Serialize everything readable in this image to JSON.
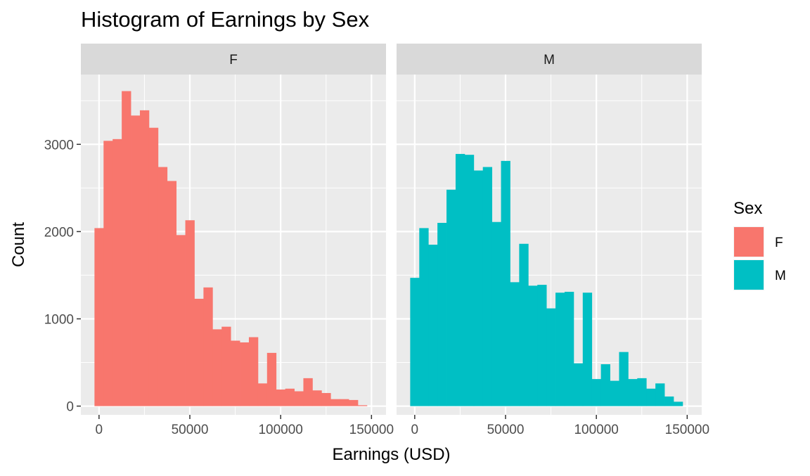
{
  "chart_data": {
    "type": "bar",
    "title": "Histogram of Earnings by Sex",
    "xlabel": "Earnings (USD)",
    "ylabel": "Count",
    "xlim": [
      -10000,
      158000
    ],
    "ylim": [
      -100,
      3800
    ],
    "x_ticks": [
      0,
      50000,
      100000,
      150000
    ],
    "x_tick_labels": [
      "0",
      "50000",
      "100000",
      "150000"
    ],
    "y_ticks": [
      0,
      1000,
      2000,
      3000
    ],
    "y_tick_labels": [
      "0",
      "1000",
      "2000",
      "3000"
    ],
    "bin_width": 5000,
    "grid": true,
    "legend": {
      "title": "Sex",
      "position": "right",
      "entries": [
        {
          "label": "F",
          "color": "#F8766D"
        },
        {
          "label": "M",
          "color": "#00BFC4"
        }
      ]
    },
    "panels": [
      {
        "strip_label": "F",
        "color": "#F8766D",
        "bin_centers": [
          0,
          5000,
          10000,
          15000,
          20000,
          25000,
          30000,
          35000,
          40000,
          45000,
          50000,
          55000,
          60000,
          65000,
          70000,
          75000,
          80000,
          85000,
          90000,
          95000,
          100000,
          105000,
          110000,
          115000,
          120000,
          125000,
          130000,
          135000,
          140000,
          145000,
          150000
        ],
        "values": [
          2040,
          3040,
          3060,
          3610,
          3330,
          3390,
          3190,
          2740,
          2580,
          1960,
          2130,
          1230,
          1360,
          880,
          910,
          750,
          730,
          790,
          260,
          610,
          190,
          200,
          170,
          320,
          180,
          150,
          80,
          80,
          70,
          10,
          0
        ]
      },
      {
        "strip_label": "M",
        "color": "#00BFC4",
        "bin_centers": [
          0,
          5000,
          10000,
          15000,
          20000,
          25000,
          30000,
          35000,
          40000,
          45000,
          50000,
          55000,
          60000,
          65000,
          70000,
          75000,
          80000,
          85000,
          90000,
          95000,
          100000,
          105000,
          110000,
          115000,
          120000,
          125000,
          130000,
          135000,
          140000,
          145000,
          150000
        ],
        "values": [
          1470,
          2040,
          1850,
          2100,
          2480,
          2890,
          2880,
          2700,
          2740,
          2110,
          2810,
          1420,
          1860,
          1380,
          1390,
          1120,
          1300,
          1310,
          490,
          1300,
          310,
          480,
          290,
          620,
          310,
          320,
          200,
          260,
          110,
          50,
          0
        ]
      }
    ]
  }
}
